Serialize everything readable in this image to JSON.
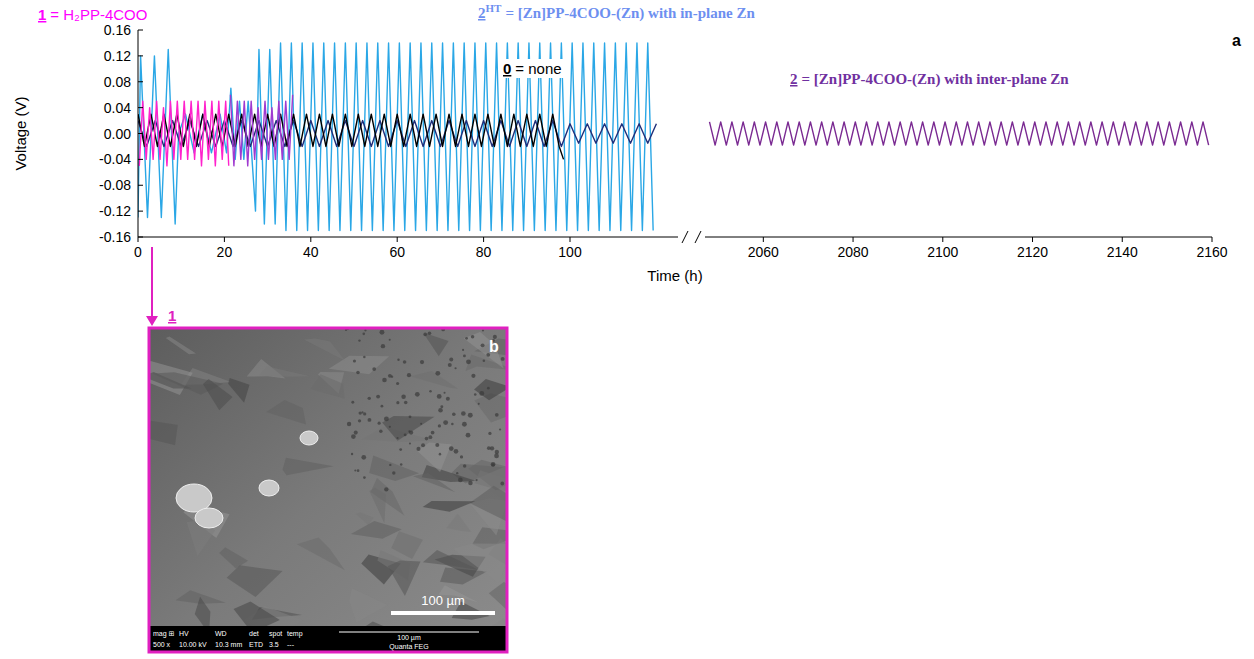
{
  "chart_data": [
    {
      "type": "line",
      "y_label": "Voltage (V)",
      "x_label": "Time (h)",
      "xlim": [
        0,
        125
      ],
      "xticks": [
        0,
        20,
        40,
        60,
        80,
        100
      ],
      "ylim": [
        -0.16,
        0.16
      ],
      "yticks": [
        -0.16,
        -0.12,
        -0.08,
        -0.04,
        {
          "value": 0,
          "label": "0.00"
        },
        0.04,
        0.08,
        0.12,
        0.16
      ],
      "series": [
        {
          "color": "#2aa7e6",
          "x": [
            0,
            0.6,
            2.2,
            3.8,
            5.4,
            7.0,
            8.6,
            9.4,
            11,
            13,
            15,
            17,
            19,
            20.5,
            21.5,
            22.5,
            23.5,
            24.5,
            25.5,
            26.5,
            27.2,
            28,
            29.25,
            30.5,
            31.75,
            33,
            34.25,
            35.5,
            36.75,
            38,
            39.25,
            40.5,
            41.75,
            43,
            44.25,
            45.5,
            46.75,
            48,
            49.25,
            50.5,
            51.75,
            53,
            54.25,
            55.5,
            56.75,
            58,
            59.25,
            60.5,
            61.75,
            63,
            64.25,
            65.5,
            66.75,
            68,
            69.25,
            70.5,
            71.75,
            73,
            74.25,
            75.5,
            76.75,
            78,
            79.25,
            80.5,
            81.75,
            83,
            84.25,
            85.5,
            86.75,
            88,
            89.25,
            90.5,
            91.75,
            93,
            94.25,
            95.5,
            96.75,
            98,
            99.25,
            100.5,
            101.75,
            103,
            104.25,
            105.5,
            106.75,
            108,
            109.25,
            110.5,
            111.75,
            113,
            114.25,
            115.5,
            116.75,
            118,
            119.25
          ],
          "values": [
            -0.13,
            0.12,
            -0.13,
            0.12,
            -0.13,
            0.13,
            -0.14,
            0,
            0.03,
            -0.03,
            0.03,
            -0.03,
            0.03,
            -0.03,
            0.07,
            -0.04,
            0.05,
            -0.04,
            0.05,
            -0.05,
            -0.12,
            0.13,
            -0.14,
            0.13,
            -0.14,
            0.14,
            -0.15,
            0.14,
            -0.15,
            0.14,
            -0.15,
            0.14,
            -0.15,
            0.14,
            -0.15,
            0.14,
            -0.15,
            0.14,
            -0.15,
            0.14,
            -0.15,
            0.14,
            -0.15,
            0.14,
            -0.15,
            0.14,
            -0.15,
            0.14,
            -0.15,
            0.14,
            -0.15,
            0.14,
            -0.15,
            0.14,
            -0.15,
            0.14,
            -0.15,
            0.14,
            -0.15,
            0.14,
            -0.15,
            0.14,
            -0.15,
            0.14,
            -0.15,
            0.14,
            -0.15,
            0.14,
            -0.15,
            0.14,
            -0.15,
            0.14,
            -0.15,
            0.14,
            -0.15,
            0.14,
            -0.15,
            0.14,
            -0.15,
            0.14,
            -0.15,
            0.14,
            -0.15,
            0.14,
            -0.15,
            0.14,
            -0.15,
            0.14,
            -0.15,
            0.14,
            -0.15,
            0.14,
            -0.15,
            0.14,
            -0.15
          ]
        },
        {
          "color": "#1f2f7a",
          "x": [
            0,
            2,
            4,
            6,
            8,
            10,
            12,
            14,
            16,
            18,
            20,
            22,
            24,
            26,
            28,
            30,
            32,
            34,
            36,
            38,
            40,
            42,
            44,
            46,
            48,
            50,
            52,
            54,
            56,
            58,
            60,
            62,
            64,
            66,
            68,
            70,
            72,
            74,
            76,
            78,
            80,
            82,
            84,
            86,
            88,
            90,
            92,
            94,
            96,
            98,
            100,
            102,
            104,
            106,
            108,
            110,
            112,
            114,
            116,
            118,
            120
          ],
          "values": [
            0.02,
            -0.02,
            0.02,
            -0.02,
            0.02,
            -0.02,
            0.02,
            -0.02,
            0.02,
            -0.02,
            0.02,
            -0.02,
            0.02,
            -0.02,
            0.02,
            -0.02,
            0.02,
            -0.02,
            0.02,
            -0.02,
            0.02,
            -0.02,
            0.02,
            -0.02,
            0.02,
            -0.02,
            0.02,
            -0.02,
            0.02,
            -0.02,
            0.02,
            -0.02,
            0.02,
            -0.02,
            0.02,
            -0.02,
            0.02,
            -0.02,
            0.02,
            -0.02,
            0.02,
            -0.02,
            0.02,
            -0.02,
            0.02,
            -0.02,
            0.02,
            -0.02,
            0.02,
            -0.02,
            0.015,
            -0.015,
            0.015,
            -0.015,
            0.015,
            -0.015,
            0.015,
            -0.015,
            0.015,
            -0.015,
            0.015
          ]
        },
        {
          "color": "#000000",
          "x": [
            0,
            1.5,
            3,
            4.5,
            6,
            7.5,
            9,
            10.5,
            12,
            13.5,
            15,
            16.5,
            18,
            19.5,
            21,
            22.5,
            24,
            25.5,
            27,
            28.5,
            30,
            31.5,
            33,
            34.5,
            36,
            37.5,
            39,
            40.5,
            42,
            43.5,
            45,
            46.5,
            48,
            49.5,
            51,
            52.5,
            54,
            55.5,
            57,
            58.5,
            60,
            61.5,
            63,
            64.5,
            66,
            67.5,
            69,
            70.5,
            72,
            73.5,
            75,
            76.5,
            78,
            79.5,
            81,
            82.5,
            84,
            85.5,
            87,
            88.5,
            90,
            91.5,
            93,
            94.5,
            96,
            97.5,
            98.5
          ],
          "values": [
            0.03,
            -0.02,
            0.03,
            -0.02,
            0.03,
            -0.02,
            0.03,
            -0.02,
            0.03,
            -0.02,
            0.03,
            -0.02,
            0.03,
            -0.02,
            0.03,
            -0.02,
            0.03,
            -0.02,
            0.03,
            -0.02,
            0.03,
            -0.02,
            0.03,
            -0.02,
            0.03,
            -0.02,
            0.03,
            -0.02,
            0.03,
            -0.02,
            0.03,
            -0.02,
            0.03,
            -0.02,
            0.03,
            -0.02,
            0.03,
            -0.02,
            0.03,
            -0.02,
            0.03,
            -0.02,
            0.03,
            -0.02,
            0.03,
            -0.02,
            0.03,
            -0.02,
            0.03,
            -0.02,
            0.03,
            -0.02,
            0.03,
            -0.02,
            0.03,
            -0.02,
            0.03,
            -0.02,
            0.03,
            -0.02,
            0.03,
            -0.02,
            0.03,
            -0.02,
            0.03,
            -0.02,
            -0.04
          ]
        },
        {
          "color": "#ff22cc",
          "x": [
            0.3,
            1.1,
            1.9,
            2.7,
            3.5,
            4.3,
            5.1,
            5.9,
            6.7,
            7.5,
            8.3,
            9.1,
            9.9,
            10.7,
            11.5,
            12.3,
            13.1,
            13.9,
            14.7,
            15.5,
            16.3,
            17.1,
            17.9,
            18.7,
            19.5,
            20.3,
            21.0
          ],
          "values": [
            -0.05,
            0.05,
            -0.04,
            0.04,
            -0.04,
            0.05,
            -0.04,
            0.04,
            -0.05,
            0.05,
            -0.04,
            0.05,
            -0.04,
            0.05,
            -0.04,
            0.05,
            -0.04,
            0.05,
            -0.05,
            0.05,
            -0.04,
            0.05,
            -0.05,
            0.05,
            -0.04,
            0.05,
            -0.05
          ]
        },
        {
          "color": "#a03ad0",
          "x": [
            21.4,
            22.2,
            23.0,
            23.8,
            24.6,
            25.4,
            26.2,
            27.0,
            27.8,
            28.6,
            29.4,
            30.2,
            31.0,
            31.8,
            32.6,
            33.4,
            34.2,
            35.0,
            35.8
          ],
          "values": [
            0.06,
            -0.05,
            0.05,
            -0.04,
            0.05,
            -0.05,
            0.05,
            -0.04,
            0.04,
            -0.04,
            0.05,
            -0.04,
            0.04,
            -0.04,
            0.05,
            -0.04,
            0.05,
            -0.04,
            0.06
          ]
        }
      ]
    },
    {
      "type": "line",
      "xlim": [
        2047,
        2160
      ],
      "xticks": [
        2060,
        2080,
        2100,
        2120,
        2140,
        2160
      ],
      "ylim": [
        -0.16,
        0.16
      ],
      "tick_labels": "x",
      "series": [
        {
          "color": "#7a2a92",
          "x": [
            2048,
            2049.25,
            2050.5,
            2051.75,
            2053,
            2054.25,
            2055.5,
            2056.75,
            2058,
            2059.25,
            2060.5,
            2061.75,
            2063,
            2064.25,
            2065.5,
            2066.75,
            2068,
            2069.25,
            2070.5,
            2071.75,
            2073,
            2074.25,
            2075.5,
            2076.75,
            2078,
            2079.25,
            2080.5,
            2081.75,
            2083,
            2084.25,
            2085.5,
            2086.75,
            2088,
            2089.25,
            2090.5,
            2091.75,
            2093,
            2094.25,
            2095.5,
            2096.75,
            2098,
            2099.25,
            2100.5,
            2101.75,
            2103,
            2104.25,
            2105.5,
            2106.75,
            2108,
            2109.25,
            2110.5,
            2111.75,
            2113,
            2114.25,
            2115.5,
            2116.75,
            2118,
            2119.25,
            2120.5,
            2121.75,
            2123,
            2124.25,
            2125.5,
            2126.75,
            2128,
            2129.25,
            2130.5,
            2131.75,
            2133,
            2134.25,
            2135.5,
            2136.75,
            2138,
            2139.25,
            2140.5,
            2141.75,
            2143,
            2144.25,
            2145.5,
            2146.75,
            2148,
            2149.25,
            2150.5,
            2151.75,
            2153,
            2154.25,
            2155.5,
            2156.75,
            2158,
            2159.25
          ],
          "values": [
            0.018,
            -0.018,
            0.018,
            -0.018,
            0.018,
            -0.018,
            0.018,
            -0.018,
            0.018,
            -0.018,
            0.018,
            -0.018,
            0.018,
            -0.018,
            0.018,
            -0.018,
            0.018,
            -0.018,
            0.018,
            -0.018,
            0.018,
            -0.018,
            0.018,
            -0.018,
            0.018,
            -0.018,
            0.018,
            -0.018,
            0.018,
            -0.018,
            0.018,
            -0.018,
            0.018,
            -0.018,
            0.018,
            -0.018,
            0.018,
            -0.018,
            0.018,
            -0.018,
            0.018,
            -0.018,
            0.018,
            -0.018,
            0.018,
            -0.018,
            0.018,
            -0.018,
            0.018,
            -0.018,
            0.018,
            -0.018,
            0.018,
            -0.018,
            0.018,
            -0.018,
            0.018,
            -0.018,
            0.018,
            -0.018,
            0.018,
            -0.018,
            0.018,
            -0.018,
            0.018,
            -0.018,
            0.018,
            -0.018,
            0.018,
            -0.018,
            0.018,
            -0.018,
            0.018,
            -0.018,
            0.018,
            -0.018,
            0.018,
            -0.018,
            0.018,
            -0.018,
            0.018,
            -0.018,
            0.018,
            -0.018,
            0.018,
            -0.018,
            0.018,
            -0.018,
            0.018,
            -0.018
          ]
        }
      ]
    }
  ],
  "annotations": [
    {
      "label": "1",
      "text": "= H₂PP-4COO",
      "color": "#ff00ff"
    },
    {
      "label": "2",
      "sup": "HT",
      "text": "= [Zn]PP-4COO-(Zn) with in-plane Zn",
      "color": "#6d8ff0"
    },
    {
      "label": "0",
      "text": "= none",
      "color": "#000000"
    },
    {
      "label": "2",
      "text": "= [Zn]PP-4COO-(Zn) with inter-plane Zn",
      "color": "#7030a0"
    }
  ],
  "panel_letter": "a",
  "image_panel": {
    "letter": "b",
    "label": "1",
    "color": "#e020c0",
    "scale_bar": "100 µm",
    "info": {
      "header": [
        "mag ⊞",
        "HV",
        "WD",
        "det",
        "spot",
        "temp"
      ],
      "values": [
        "500 x",
        "10.00 kV",
        "10.3 mm",
        "ETD",
        "3.5",
        "---"
      ],
      "bar": "100 µm",
      "instrument": "Quanta FEG"
    }
  }
}
